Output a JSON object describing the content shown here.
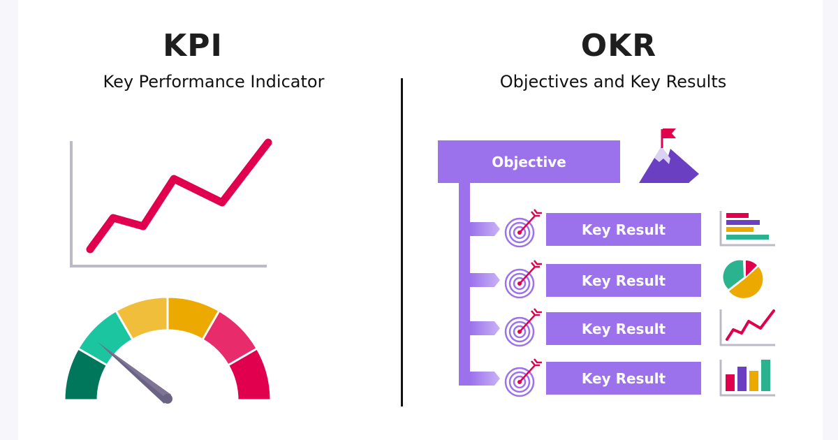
{
  "kpi": {
    "title": "KPI",
    "subtitle": "Key Performance Indicator",
    "line_chart_icon": "rising-line-chart",
    "gauge_icon": "speedometer-gauge"
  },
  "okr": {
    "title": "OKR",
    "subtitle": "Objectives and Key Results",
    "objective_label": "Objective",
    "objective_icon": "mountain-flag",
    "key_results": [
      {
        "label": "Key Result",
        "icon": "target-arrow",
        "chart_icon": "horizontal-bar-chart"
      },
      {
        "label": "Key Result",
        "icon": "target-arrow",
        "chart_icon": "pie-chart"
      },
      {
        "label": "Key Result",
        "icon": "target-arrow",
        "chart_icon": "line-chart"
      },
      {
        "label": "Key Result",
        "icon": "target-arrow",
        "chart_icon": "vertical-bar-chart"
      }
    ]
  },
  "colors": {
    "purple": "#9b72ec",
    "purple_dark": "#6a3fc1",
    "crimson": "#e0004d",
    "gauge": [
      "#00765a",
      "#1bc5a0",
      "#f0be3a",
      "#ecaa00",
      "#e72b6b",
      "#e0004d"
    ],
    "axis": "#bdbac8"
  }
}
